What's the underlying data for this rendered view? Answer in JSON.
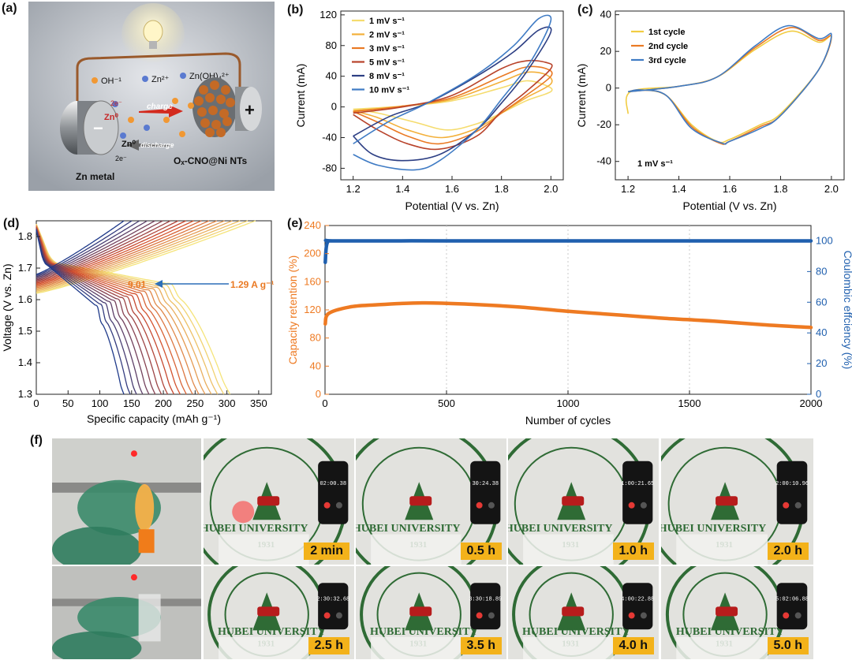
{
  "panels": {
    "a": {
      "label": "(a)",
      "ions": [
        "OH⁻¹",
        "Zn²⁺",
        "Zn(OH)₄²⁺"
      ],
      "charge_label": "charge",
      "discharge_label": "discharge",
      "zn_metal_label": "Zn metal",
      "cathode_label": "Oₓ-CNO@Ni NTs",
      "electron_label": "2e⁻",
      "zn0_label": "Zn⁰",
      "plus_sign": "+",
      "minus_sign": "−"
    },
    "b": {
      "label": "(b)"
    },
    "c": {
      "label": "(c)",
      "annotation": "1 mV s⁻¹"
    },
    "d": {
      "label": "(d)",
      "annotation_value": "9.01",
      "annotation_rate": "1.29 A g⁻¹"
    },
    "e": {
      "label": "(e)"
    },
    "f": {
      "label": "(f)",
      "seal_text": "HUBEI UNIVERSITY",
      "seal_year": "1931",
      "photos_top": [
        {
          "badge": "",
          "clock": ""
        },
        {
          "badge": "2 min",
          "clock": "02:00.38"
        },
        {
          "badge": "0.5 h",
          "clock": "30:24.38"
        },
        {
          "badge": "1.0 h",
          "clock": "1:00:21.65"
        },
        {
          "badge": "2.0 h",
          "clock": "2:00:10.96"
        }
      ],
      "photos_bottom": [
        {
          "badge": "",
          "clock": ""
        },
        {
          "badge": "2.5 h",
          "clock": "2:30:32.68"
        },
        {
          "badge": "3.5 h",
          "clock": "3:30:18.89"
        },
        {
          "badge": "4.0 h",
          "clock": "4:00:22.88"
        },
        {
          "badge": "5.0 h",
          "clock": "5:02:06.88"
        }
      ]
    }
  },
  "chart_data": [
    {
      "id": "b",
      "type": "line",
      "xlabel": "Potential (V vs. Zn)",
      "ylabel": "Current (mA)",
      "xlim": [
        1.15,
        2.05
      ],
      "ylim": [
        -95,
        125
      ],
      "xticks": [
        1.2,
        1.4,
        1.6,
        1.8,
        2.0
      ],
      "yticks": [
        -80,
        -40,
        0,
        40,
        80,
        120
      ],
      "legend_position": "top-left",
      "series": [
        {
          "name": "1 mV s⁻¹",
          "color": "#f5dc6e",
          "anodic": [
            [
              1.2,
              -3
            ],
            [
              1.4,
              1
            ],
            [
              1.6,
              8
            ],
            [
              1.8,
              25
            ],
            [
              1.9,
              34
            ],
            [
              1.98,
              28
            ],
            [
              2.0,
              20
            ]
          ],
          "cathodic": [
            [
              2.0,
              20
            ],
            [
              1.9,
              8
            ],
            [
              1.8,
              -8
            ],
            [
              1.7,
              -22
            ],
            [
              1.58,
              -30
            ],
            [
              1.45,
              -20
            ],
            [
              1.3,
              -8
            ],
            [
              1.2,
              -3
            ]
          ]
        },
        {
          "name": "2 mV s⁻¹",
          "color": "#f3b03a",
          "anodic": [
            [
              1.2,
              -5
            ],
            [
              1.4,
              1
            ],
            [
              1.6,
              10
            ],
            [
              1.8,
              33
            ],
            [
              1.9,
              45
            ],
            [
              1.98,
              42
            ],
            [
              2.0,
              30
            ]
          ],
          "cathodic": [
            [
              2.0,
              30
            ],
            [
              1.9,
              12
            ],
            [
              1.8,
              -8
            ],
            [
              1.7,
              -28
            ],
            [
              1.56,
              -40
            ],
            [
              1.42,
              -30
            ],
            [
              1.3,
              -14
            ],
            [
              1.2,
              -5
            ]
          ]
        },
        {
          "name": "3 mV s⁻¹",
          "color": "#ea7a24",
          "anodic": [
            [
              1.2,
              -6
            ],
            [
              1.4,
              1
            ],
            [
              1.6,
              12
            ],
            [
              1.8,
              40
            ],
            [
              1.9,
              52
            ],
            [
              1.98,
              50
            ],
            [
              2.0,
              40
            ]
          ],
          "cathodic": [
            [
              2.0,
              40
            ],
            [
              1.9,
              15
            ],
            [
              1.8,
              -8
            ],
            [
              1.7,
              -32
            ],
            [
              1.55,
              -48
            ],
            [
              1.42,
              -38
            ],
            [
              1.3,
              -20
            ],
            [
              1.2,
              -6
            ]
          ]
        },
        {
          "name": "5 mV s⁻¹",
          "color": "#b8422a",
          "anodic": [
            [
              1.2,
              -8
            ],
            [
              1.4,
              0
            ],
            [
              1.6,
              15
            ],
            [
              1.8,
              50
            ],
            [
              1.9,
              60
            ],
            [
              1.98,
              58
            ],
            [
              2.0,
              50
            ]
          ],
          "cathodic": [
            [
              2.0,
              50
            ],
            [
              1.9,
              20
            ],
            [
              1.8,
              -6
            ],
            [
              1.7,
              -38
            ],
            [
              1.55,
              -55
            ],
            [
              1.42,
              -48
            ],
            [
              1.3,
              -30
            ],
            [
              1.2,
              -10
            ]
          ]
        },
        {
          "name": "8 mV s⁻¹",
          "color": "#2d3f84",
          "anodic": [
            [
              1.2,
              -38
            ],
            [
              1.35,
              -12
            ],
            [
              1.5,
              5
            ],
            [
              1.7,
              40
            ],
            [
              1.85,
              72
            ],
            [
              1.95,
              100
            ],
            [
              2.0,
              98
            ]
          ],
          "cathodic": [
            [
              2.0,
              98
            ],
            [
              1.9,
              45
            ],
            [
              1.8,
              5
            ],
            [
              1.7,
              -30
            ],
            [
              1.55,
              -62
            ],
            [
              1.4,
              -70
            ],
            [
              1.28,
              -62
            ],
            [
              1.2,
              -38
            ]
          ]
        },
        {
          "name": "10 mV s⁻¹",
          "color": "#3f7bc4",
          "anodic": [
            [
              1.2,
              -48
            ],
            [
              1.35,
              -18
            ],
            [
              1.5,
              5
            ],
            [
              1.7,
              42
            ],
            [
              1.85,
              80
            ],
            [
              1.95,
              115
            ],
            [
              2.0,
              113
            ]
          ],
          "cathodic": [
            [
              2.0,
              113
            ],
            [
              1.92,
              60
            ],
            [
              1.8,
              10
            ],
            [
              1.7,
              -30
            ],
            [
              1.55,
              -70
            ],
            [
              1.45,
              -82
            ],
            [
              1.3,
              -76
            ],
            [
              1.2,
              -62
            ]
          ]
        }
      ]
    },
    {
      "id": "c",
      "type": "line",
      "xlabel": "Potential (V vs. Zn)",
      "ylabel": "Current (mA)",
      "xlim": [
        1.15,
        2.05
      ],
      "ylim": [
        -50,
        42
      ],
      "xticks": [
        1.2,
        1.4,
        1.6,
        1.8,
        2.0
      ],
      "yticks": [
        -40,
        -20,
        0,
        20,
        40
      ],
      "legend_position": "top-left",
      "series": [
        {
          "name": "1st cycle",
          "color": "#f1cc42",
          "loop": [
            [
              1.2,
              -14
            ],
            [
              1.21,
              -2
            ],
            [
              1.4,
              1
            ],
            [
              1.55,
              6
            ],
            [
              1.7,
              21
            ],
            [
              1.84,
              31
            ],
            [
              1.95,
              25
            ],
            [
              2.0,
              28
            ],
            [
              1.95,
              10
            ],
            [
              1.8,
              -14
            ],
            [
              1.72,
              -20
            ],
            [
              1.6,
              -28
            ],
            [
              1.55,
              -29
            ],
            [
              1.45,
              -20
            ],
            [
              1.35,
              -4
            ],
            [
              1.25,
              -1
            ],
            [
              1.2,
              -2
            ]
          ]
        },
        {
          "name": "2nd cycle",
          "color": "#ea7a24",
          "loop": [
            [
              1.2,
              -2
            ],
            [
              1.4,
              1
            ],
            [
              1.55,
              6
            ],
            [
              1.7,
              22
            ],
            [
              1.84,
              33
            ],
            [
              1.95,
              26
            ],
            [
              2.0,
              28
            ],
            [
              1.95,
              10
            ],
            [
              1.8,
              -15
            ],
            [
              1.72,
              -21
            ],
            [
              1.6,
              -29
            ],
            [
              1.56,
              -30
            ],
            [
              1.45,
              -21
            ],
            [
              1.35,
              -4
            ],
            [
              1.25,
              -1
            ],
            [
              1.2,
              -2
            ]
          ]
        },
        {
          "name": "3rd cycle",
          "color": "#3f7bc4",
          "loop": [
            [
              1.2,
              -2
            ],
            [
              1.4,
              1
            ],
            [
              1.55,
              6
            ],
            [
              1.7,
              23
            ],
            [
              1.83,
              34
            ],
            [
              1.95,
              27
            ],
            [
              2.0,
              29
            ],
            [
              1.95,
              10
            ],
            [
              1.8,
              -15
            ],
            [
              1.72,
              -22
            ],
            [
              1.6,
              -29
            ],
            [
              1.57,
              -30
            ],
            [
              1.45,
              -22
            ],
            [
              1.35,
              -4
            ],
            [
              1.25,
              -1
            ],
            [
              1.2,
              -2
            ]
          ]
        }
      ]
    },
    {
      "id": "d",
      "type": "line",
      "xlabel": "Specific capacity (mAh g⁻¹)",
      "ylabel": "Voltage (V vs. Zn)",
      "xlim": [
        0,
        370
      ],
      "ylim": [
        1.3,
        1.85
      ],
      "xticks": [
        0,
        50,
        100,
        150,
        200,
        250,
        300,
        350
      ],
      "yticks": [
        1.3,
        1.4,
        1.5,
        1.6,
        1.7,
        1.8
      ],
      "curve_count": 18,
      "charge_capacity_range": [
        138,
        345
      ],
      "discharge_capacity_range": [
        138,
        305
      ],
      "color_start": "#f5e47a",
      "color_mid": "#d24a2a",
      "color_end": "#1f3a8a"
    },
    {
      "id": "e",
      "type": "scatter",
      "xlabel": "Number of cycles",
      "ylabel_left": "Capacity retention (%)",
      "ylabel_right": "Coulombic effciency (%)",
      "xlim": [
        0,
        2000
      ],
      "ylim_left": [
        0,
        240
      ],
      "ylim_right": [
        0,
        110
      ],
      "xticks": [
        0,
        500,
        1000,
        1500,
        2000
      ],
      "yticks_left": [
        0,
        40,
        80,
        120,
        160,
        200,
        240
      ],
      "yticks_right": [
        0,
        20,
        40,
        60,
        80,
        100
      ],
      "series": [
        {
          "name": "Capacity retention",
          "axis": "left",
          "color": "#ee7a22",
          "points": [
            [
              1,
              100
            ],
            [
              15,
              115
            ],
            [
              100,
              124
            ],
            [
              200,
              127
            ],
            [
              400,
              130
            ],
            [
              600,
              128
            ],
            [
              800,
              124
            ],
            [
              1000,
              118
            ],
            [
              1200,
              113
            ],
            [
              1400,
              108
            ],
            [
              1600,
              104
            ],
            [
              1800,
              99
            ],
            [
              2000,
              95
            ]
          ]
        },
        {
          "name": "Coulombic efficiency",
          "axis": "right",
          "color": "#1f5fae",
          "points": [
            [
              1,
              86
            ],
            [
              10,
              99
            ],
            [
              50,
              100
            ],
            [
              500,
              100
            ],
            [
              1000,
              100
            ],
            [
              1500,
              100
            ],
            [
              2000,
              100
            ]
          ]
        }
      ]
    }
  ]
}
